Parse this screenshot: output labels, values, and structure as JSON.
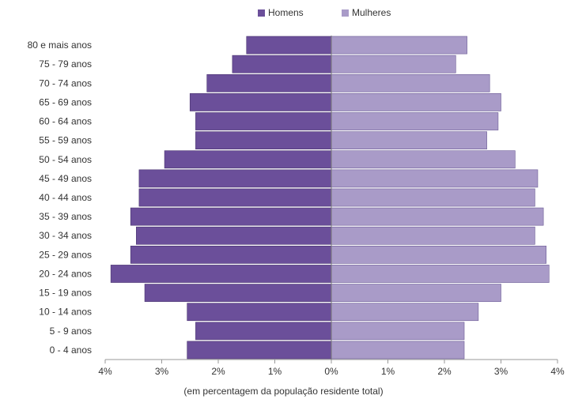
{
  "chart_data": {
    "type": "bar",
    "orientation": "horizontal-population-pyramid",
    "categories": [
      "80 e mais anos",
      "75 - 79 anos",
      "70 - 74 anos",
      "65 - 69 anos",
      "60 - 64 anos",
      "55 - 59 anos",
      "50 - 54 anos",
      "45 - 49 anos",
      "40 - 44 anos",
      "35 - 39 anos",
      "30 - 34 anos",
      "25 - 29 anos",
      "20 - 24 anos",
      "15 - 19 anos",
      "10 - 14 anos",
      "5 - 9 anos",
      "0 - 4 anos"
    ],
    "series": [
      {
        "name": "Homens",
        "color": "#6b4f9a",
        "values": [
          1.5,
          1.75,
          2.2,
          2.5,
          2.4,
          2.4,
          2.95,
          3.4,
          3.4,
          3.55,
          3.45,
          3.55,
          3.9,
          3.3,
          2.55,
          2.4,
          2.55
        ]
      },
      {
        "name": "Mulheres",
        "color": "#a99bc8",
        "values": [
          2.4,
          2.2,
          2.8,
          3.0,
          2.95,
          2.75,
          3.25,
          3.65,
          3.6,
          3.75,
          3.6,
          3.8,
          3.85,
          3.0,
          2.6,
          2.35,
          2.35
        ]
      }
    ],
    "xticks": [
      "4%",
      "3%",
      "2%",
      "1%",
      "0%",
      "1%",
      "2%",
      "3%",
      "4%"
    ],
    "xlim": [
      -4,
      4
    ],
    "xlabel": "(em percentagem da população residente total)",
    "ylabel": "",
    "title": "",
    "legend_position": "top",
    "grid": false
  }
}
